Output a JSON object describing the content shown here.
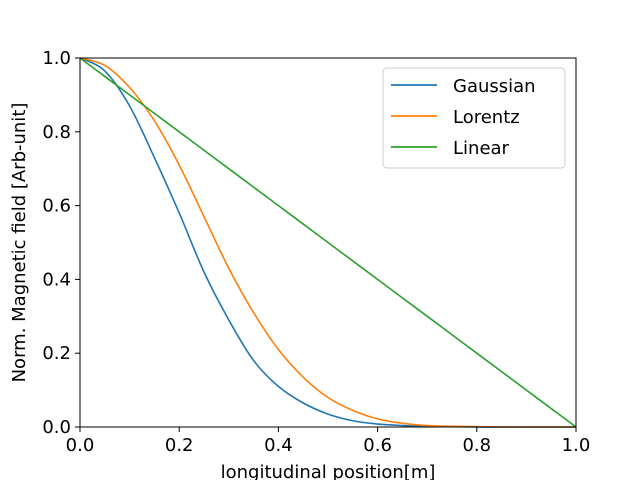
{
  "chart_data": {
    "type": "line",
    "title": "",
    "xlabel": "longitudinal position[m]",
    "ylabel": "Norm. Magnetic field [Arb-unit]",
    "xlim": [
      0.0,
      1.0
    ],
    "ylim": [
      0.0,
      1.0
    ],
    "xticks": [
      "0.0",
      "0.2",
      "0.4",
      "0.6",
      "0.8",
      "1.0"
    ],
    "yticks": [
      "0.0",
      "0.2",
      "0.4",
      "0.6",
      "0.8",
      "1.0"
    ],
    "grid": false,
    "legend_position": "top-right",
    "x": [
      0.0,
      0.05,
      0.1,
      0.15,
      0.2,
      0.25,
      0.3,
      0.35,
      0.4,
      0.45,
      0.5,
      0.55,
      0.6,
      0.65,
      0.7,
      0.75,
      0.8,
      0.85,
      0.9,
      0.95,
      1.0
    ],
    "series": [
      {
        "name": "Gaussian",
        "color": "#1f77b4",
        "values": [
          1.0,
          0.965,
          0.87,
          0.73,
          0.58,
          0.42,
          0.29,
          0.18,
          0.11,
          0.065,
          0.035,
          0.017,
          0.008,
          0.004,
          0.002,
          0.001,
          0.0,
          0.0,
          0.0,
          0.0,
          0.0
        ]
      },
      {
        "name": "Lorentz",
        "color": "#ff7f0e",
        "values": [
          1.0,
          0.98,
          0.92,
          0.83,
          0.71,
          0.57,
          0.43,
          0.31,
          0.21,
          0.135,
          0.08,
          0.045,
          0.022,
          0.01,
          0.004,
          0.002,
          0.001,
          0.0,
          0.0,
          0.0,
          0.0
        ]
      },
      {
        "name": "Linear",
        "color": "#2ca02c",
        "values": [
          1.0,
          0.95,
          0.9,
          0.85,
          0.8,
          0.75,
          0.7,
          0.65,
          0.6,
          0.55,
          0.5,
          0.45,
          0.4,
          0.35,
          0.3,
          0.25,
          0.2,
          0.15,
          0.1,
          0.05,
          0.0
        ]
      }
    ]
  }
}
